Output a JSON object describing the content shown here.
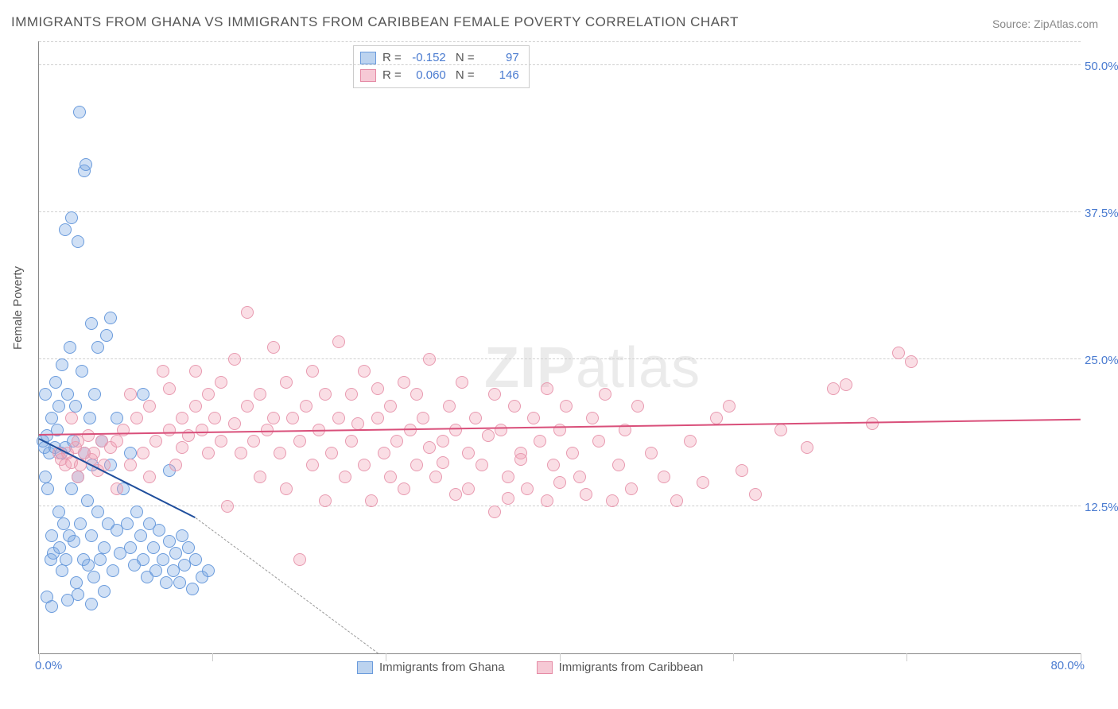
{
  "title": "IMMIGRANTS FROM GHANA VS IMMIGRANTS FROM CARIBBEAN FEMALE POVERTY CORRELATION CHART",
  "source": "Source: ZipAtlas.com",
  "yaxis_label": "Female Poverty",
  "watermark_bold": "ZIP",
  "watermark_light": "atlas",
  "chart": {
    "type": "scatter",
    "xlim": [
      0,
      80
    ],
    "ylim": [
      0,
      52
    ],
    "x_min_label": "0.0%",
    "x_max_label": "80.0%",
    "y_ticks": [
      {
        "v": 12.5,
        "label": "12.5%"
      },
      {
        "v": 25.0,
        "label": "25.0%"
      },
      {
        "v": 37.5,
        "label": "37.5%"
      },
      {
        "v": 50.0,
        "label": "50.0%"
      }
    ],
    "x_tick_positions": [
      0,
      13.3,
      26.6,
      40,
      53.3,
      66.6,
      80
    ],
    "grid_color": "#d0d0d0",
    "background_color": "#ffffff",
    "point_radius": 7,
    "series": [
      {
        "name": "Immigrants from Ghana",
        "fill": "rgba(120,165,225,0.35)",
        "stroke": "#6a9bdc",
        "swatch_fill": "#bcd3ef",
        "swatch_border": "#6a9bdc",
        "r": "-0.152",
        "n": "97",
        "trend": {
          "x1": 0,
          "y1": 18.2,
          "x2": 12,
          "y2": 11.5,
          "color": "#1f4e9c",
          "dash_to_x": 26,
          "dash_to_y": 0
        },
        "points": [
          [
            0.3,
            18.0
          ],
          [
            0.4,
            17.5
          ],
          [
            0.5,
            15.0
          ],
          [
            0.5,
            22.0
          ],
          [
            0.6,
            18.5
          ],
          [
            0.7,
            14.0
          ],
          [
            0.8,
            17.0
          ],
          [
            0.9,
            8.0
          ],
          [
            1.0,
            20.0
          ],
          [
            1.0,
            10.0
          ],
          [
            1.1,
            8.5
          ],
          [
            1.2,
            17.5
          ],
          [
            1.3,
            23.0
          ],
          [
            1.4,
            19.0
          ],
          [
            1.5,
            12.0
          ],
          [
            1.5,
            21.0
          ],
          [
            1.6,
            9.0
          ],
          [
            1.7,
            17.0
          ],
          [
            1.8,
            24.5
          ],
          [
            1.8,
            7.0
          ],
          [
            1.9,
            11.0
          ],
          [
            2.0,
            17.5
          ],
          [
            2.0,
            36.0
          ],
          [
            2.1,
            8.0
          ],
          [
            2.2,
            22.0
          ],
          [
            2.3,
            10.0
          ],
          [
            2.4,
            26.0
          ],
          [
            2.5,
            14.0
          ],
          [
            2.5,
            37.0
          ],
          [
            2.6,
            18.0
          ],
          [
            2.7,
            9.5
          ],
          [
            2.8,
            21.0
          ],
          [
            2.9,
            6.0
          ],
          [
            3.0,
            15.0
          ],
          [
            3.0,
            35.0
          ],
          [
            3.1,
            46.0
          ],
          [
            3.2,
            11.0
          ],
          [
            3.3,
            24.0
          ],
          [
            3.4,
            8.0
          ],
          [
            3.5,
            17.0
          ],
          [
            3.5,
            41.0
          ],
          [
            3.6,
            41.5
          ],
          [
            3.7,
            13.0
          ],
          [
            3.8,
            7.5
          ],
          [
            3.9,
            20.0
          ],
          [
            4.0,
            10.0
          ],
          [
            4.0,
            28.0
          ],
          [
            4.1,
            16.0
          ],
          [
            4.2,
            6.5
          ],
          [
            4.3,
            22.0
          ],
          [
            4.5,
            12.0
          ],
          [
            4.5,
            26.0
          ],
          [
            4.7,
            8.0
          ],
          [
            4.8,
            18.0
          ],
          [
            5.0,
            9.0
          ],
          [
            5.0,
            5.3
          ],
          [
            5.2,
            27.0
          ],
          [
            5.3,
            11.0
          ],
          [
            5.5,
            16.0
          ],
          [
            5.7,
            7.0
          ],
          [
            5.5,
            28.5
          ],
          [
            6.0,
            10.5
          ],
          [
            6.0,
            20.0
          ],
          [
            6.2,
            8.5
          ],
          [
            6.5,
            14.0
          ],
          [
            6.8,
            11.0
          ],
          [
            7.0,
            9.0
          ],
          [
            7.0,
            17.0
          ],
          [
            7.3,
            7.5
          ],
          [
            7.5,
            12.0
          ],
          [
            7.8,
            10.0
          ],
          [
            8.0,
            8.0
          ],
          [
            8.0,
            22.0
          ],
          [
            8.3,
            6.5
          ],
          [
            8.5,
            11.0
          ],
          [
            8.8,
            9.0
          ],
          [
            9.0,
            7.0
          ],
          [
            9.2,
            10.5
          ],
          [
            9.5,
            8.0
          ],
          [
            9.8,
            6.0
          ],
          [
            10.0,
            9.5
          ],
          [
            10.0,
            15.5
          ],
          [
            10.3,
            7.0
          ],
          [
            10.5,
            8.5
          ],
          [
            10.8,
            6.0
          ],
          [
            11.0,
            10.0
          ],
          [
            11.2,
            7.5
          ],
          [
            11.5,
            9.0
          ],
          [
            11.8,
            5.5
          ],
          [
            12.0,
            8.0
          ],
          [
            12.5,
            6.5
          ],
          [
            13.0,
            7.0
          ],
          [
            1.0,
            4.0
          ],
          [
            0.6,
            4.8
          ],
          [
            2.2,
            4.5
          ],
          [
            3.0,
            5.0
          ],
          [
            4.0,
            4.2
          ]
        ]
      },
      {
        "name": "Immigrants from Caribbean",
        "fill": "rgba(240,160,180,0.35)",
        "stroke": "#e89ab0",
        "swatch_fill": "#f6c9d5",
        "swatch_border": "#e58aa5",
        "r": "0.060",
        "n": "146",
        "trend": {
          "x1": 0,
          "y1": 18.5,
          "x2": 80,
          "y2": 19.8,
          "color": "#d94f7a"
        },
        "points": [
          [
            1.5,
            17.0
          ],
          [
            1.7,
            16.5
          ],
          [
            2.0,
            16.0
          ],
          [
            2.2,
            17.0
          ],
          [
            2.5,
            16.2
          ],
          [
            2.5,
            20.0
          ],
          [
            2.8,
            17.5
          ],
          [
            3.0,
            18.0
          ],
          [
            3.0,
            15.0
          ],
          [
            3.2,
            16.0
          ],
          [
            3.5,
            17.0
          ],
          [
            3.8,
            18.5
          ],
          [
            4.0,
            16.5
          ],
          [
            4.2,
            17.0
          ],
          [
            4.5,
            15.5
          ],
          [
            4.8,
            18.0
          ],
          [
            5.0,
            16.0
          ],
          [
            5.5,
            17.5
          ],
          [
            6.0,
            18.0
          ],
          [
            6.0,
            14.0
          ],
          [
            6.5,
            19.0
          ],
          [
            7.0,
            22.0
          ],
          [
            7.0,
            16.0
          ],
          [
            7.5,
            20.0
          ],
          [
            8.0,
            17.0
          ],
          [
            8.5,
            21.0
          ],
          [
            8.5,
            15.0
          ],
          [
            9.0,
            18.0
          ],
          [
            9.5,
            24.0
          ],
          [
            10.0,
            19.0
          ],
          [
            10.0,
            22.5
          ],
          [
            10.5,
            16.0
          ],
          [
            11.0,
            20.0
          ],
          [
            11.0,
            17.5
          ],
          [
            11.5,
            18.5
          ],
          [
            12.0,
            21.0
          ],
          [
            12.0,
            24.0
          ],
          [
            12.5,
            19.0
          ],
          [
            13.0,
            17.0
          ],
          [
            13.0,
            22.0
          ],
          [
            13.5,
            20.0
          ],
          [
            14.0,
            18.0
          ],
          [
            14.0,
            23.0
          ],
          [
            14.5,
            12.5
          ],
          [
            15.0,
            19.5
          ],
          [
            15.0,
            25.0
          ],
          [
            15.5,
            17.0
          ],
          [
            16.0,
            21.0
          ],
          [
            16.0,
            29.0
          ],
          [
            16.5,
            18.0
          ],
          [
            17.0,
            15.0
          ],
          [
            17.0,
            22.0
          ],
          [
            17.5,
            19.0
          ],
          [
            18.0,
            20.0
          ],
          [
            18.0,
            26.0
          ],
          [
            18.5,
            17.0
          ],
          [
            19.0,
            23.0
          ],
          [
            19.0,
            14.0
          ],
          [
            19.5,
            20.0
          ],
          [
            20.0,
            18.0
          ],
          [
            20.0,
            8.0
          ],
          [
            20.5,
            21.0
          ],
          [
            21.0,
            24.0
          ],
          [
            21.0,
            16.0
          ],
          [
            21.5,
            19.0
          ],
          [
            22.0,
            22.0
          ],
          [
            22.0,
            13.0
          ],
          [
            22.5,
            17.0
          ],
          [
            23.0,
            20.0
          ],
          [
            23.0,
            26.5
          ],
          [
            23.5,
            15.0
          ],
          [
            24.0,
            18.0
          ],
          [
            24.0,
            22.0
          ],
          [
            24.5,
            19.5
          ],
          [
            25.0,
            16.0
          ],
          [
            25.0,
            24.0
          ],
          [
            25.5,
            13.0
          ],
          [
            26.0,
            20.0
          ],
          [
            26.0,
            22.5
          ],
          [
            26.5,
            17.0
          ],
          [
            27.0,
            15.0
          ],
          [
            27.0,
            21.0
          ],
          [
            27.5,
            18.0
          ],
          [
            28.0,
            23.0
          ],
          [
            28.0,
            14.0
          ],
          [
            28.5,
            19.0
          ],
          [
            29.0,
            16.0
          ],
          [
            29.0,
            22.0
          ],
          [
            29.5,
            20.0
          ],
          [
            30.0,
            17.5
          ],
          [
            30.0,
            25.0
          ],
          [
            30.5,
            15.0
          ],
          [
            31.0,
            18.0
          ],
          [
            31.0,
            16.2
          ],
          [
            31.5,
            21.0
          ],
          [
            32.0,
            13.5
          ],
          [
            32.0,
            19.0
          ],
          [
            32.5,
            23.0
          ],
          [
            33.0,
            17.0
          ],
          [
            33.0,
            14.0
          ],
          [
            33.5,
            20.0
          ],
          [
            34.0,
            16.0
          ],
          [
            34.5,
            18.5
          ],
          [
            35.0,
            22.0
          ],
          [
            35.0,
            12.0
          ],
          [
            35.5,
            19.0
          ],
          [
            36.0,
            15.0
          ],
          [
            36.0,
            13.2
          ],
          [
            36.5,
            21.0
          ],
          [
            37.0,
            17.0
          ],
          [
            37.0,
            16.5
          ],
          [
            37.5,
            14.0
          ],
          [
            38.0,
            20.0
          ],
          [
            38.5,
            18.0
          ],
          [
            39.0,
            22.5
          ],
          [
            39.0,
            13.0
          ],
          [
            39.5,
            16.0
          ],
          [
            40.0,
            19.0
          ],
          [
            40.0,
            14.5
          ],
          [
            40.5,
            21.0
          ],
          [
            41.0,
            17.0
          ],
          [
            41.5,
            15.0
          ],
          [
            42.0,
            13.5
          ],
          [
            42.5,
            20.0
          ],
          [
            43.0,
            18.0
          ],
          [
            43.5,
            22.0
          ],
          [
            44.0,
            13.0
          ],
          [
            44.5,
            16.0
          ],
          [
            45.0,
            19.0
          ],
          [
            45.5,
            14.0
          ],
          [
            46.0,
            21.0
          ],
          [
            47.0,
            17.0
          ],
          [
            48.0,
            15.0
          ],
          [
            49.0,
            13.0
          ],
          [
            50.0,
            18.0
          ],
          [
            51.0,
            14.5
          ],
          [
            52.0,
            20.0
          ],
          [
            53.0,
            21.0
          ],
          [
            54.0,
            15.5
          ],
          [
            55.0,
            13.5
          ],
          [
            57.0,
            19.0
          ],
          [
            59.0,
            17.5
          ],
          [
            61.0,
            22.5
          ],
          [
            62.0,
            22.8
          ],
          [
            64.0,
            19.5
          ],
          [
            66.0,
            25.5
          ],
          [
            67.0,
            24.8
          ]
        ]
      }
    ],
    "legend_series_labels": [
      "Immigrants from Ghana",
      "Immigrants from Caribbean"
    ]
  }
}
